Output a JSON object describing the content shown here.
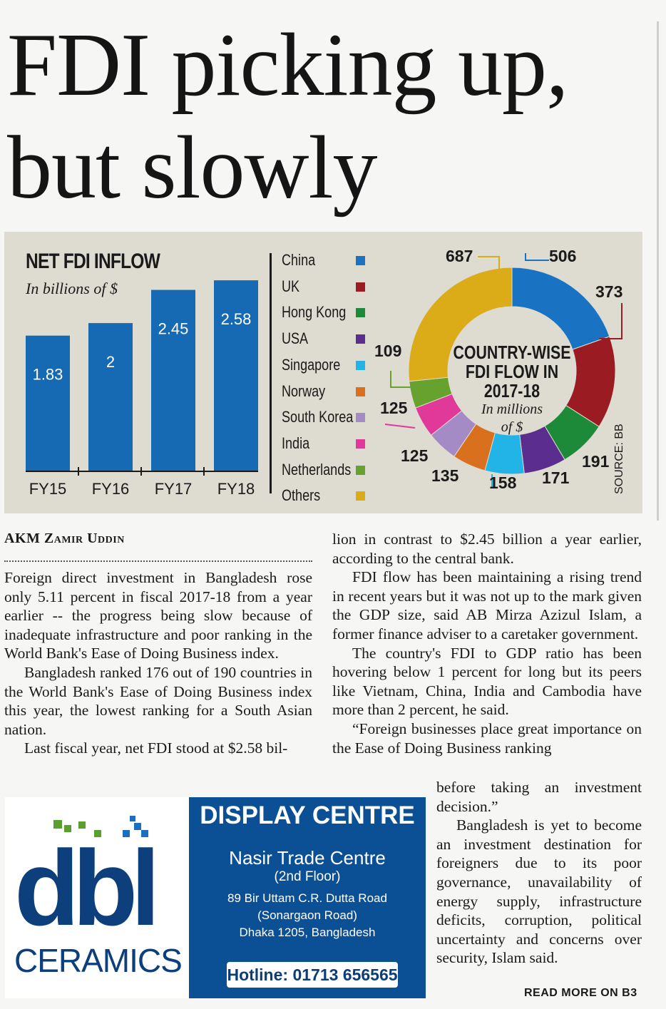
{
  "headline": {
    "line1": "FDI picking up,",
    "line2": "but slowly"
  },
  "net_fdi": {
    "title": "NET FDI INFLOW",
    "subtitle": "In billions of $"
  },
  "country_chart": {
    "center_title_1": "COUNTRY-WISE",
    "center_title_2": "FDI FLOW IN",
    "center_title_3": "2017-18",
    "center_sub_1": "In millions",
    "center_sub_2": "of $",
    "source": "SOURCE: BB"
  },
  "chart_data": [
    {
      "type": "bar",
      "title": "NET FDI INFLOW",
      "subtitle": "In billions of $",
      "categories": [
        "FY15",
        "FY16",
        "FY17",
        "FY18"
      ],
      "values": [
        1.83,
        2,
        2.45,
        2.58
      ],
      "labels": [
        "1.83",
        "2",
        "2.45",
        "2.58"
      ],
      "ylim": [
        0,
        2.9
      ],
      "color": "#1669b3"
    },
    {
      "type": "pie",
      "title": "COUNTRY-WISE FDI FLOW IN 2017-18",
      "subtitle": "In millions of $",
      "slices": [
        {
          "name": "China",
          "value": 506,
          "label": "506",
          "color": "#1a73c2"
        },
        {
          "name": "UK",
          "value": 373,
          "label": "373",
          "color": "#9b1b23"
        },
        {
          "name": "Hong Kong",
          "value": 191,
          "label": "191",
          "color": "#1d8a3a"
        },
        {
          "name": "USA",
          "value": 171,
          "label": "171",
          "color": "#5b2d8e"
        },
        {
          "name": "Singapore",
          "value": 158,
          "label": "158",
          "color": "#22b4e6"
        },
        {
          "name": "Norway",
          "value": 135,
          "label": "135",
          "color": "#d8701e"
        },
        {
          "name": "South Korea",
          "value": 125,
          "label": "125",
          "color": "#a48bc6"
        },
        {
          "name": "India",
          "value": 125,
          "label": "125",
          "color": "#e0399a"
        },
        {
          "name": "Netherlands",
          "value": 109,
          "label": "109",
          "color": "#67a12e"
        },
        {
          "name": "Others",
          "value": 687,
          "label": "687",
          "color": "#dcab18"
        }
      ]
    }
  ],
  "article": {
    "byline": "AKM Zamir Uddin",
    "col1": [
      "Foreign direct investment in Bangladesh rose only 5.11 percent in fiscal 2017-18 from a year earlier -- the progress being slow because of inadequate infrastructure and poor ranking in the World Bank's Ease of Doing Business index.",
      "Bangladesh ranked 176 out of 190 countries in the World Bank's Ease of Doing Business index this year, the lowest ranking for a South Asian nation.",
      "Last fiscal year, net FDI stood at $2.58 bil-"
    ],
    "col2": [
      "lion in contrast to $2.45 billion a year earlier, according to the central bank.",
      "FDI flow has been maintaining a rising trend in recent years but it was not up to the mark given the GDP size, said AB Mirza Azizul Islam, a former finance adviser to a caretaker government.",
      "The country's FDI to GDP ratio has been hovering below 1 percent for long but its peers like Vietnam, China, India and Cambodia have more than 2 percent, he said.",
      "“Foreign businesses place great importance on the Ease of Doing Business ranking"
    ],
    "col3": [
      "before taking an investment decision.”",
      "Bangladesh is yet to become an investment destination for foreigners due to its poor governance, unavailability of energy supply, infrastructure deficits, corruption, political uncertainty and concerns over security, Islam said."
    ],
    "read_more": "READ MORE ON B3"
  },
  "ad": {
    "logo_text": "dbl",
    "logo_sub": "CERAMICS",
    "heading": "DISPLAY CENTRE",
    "venue": "Nasir Trade Centre",
    "floor": "(2nd Floor)",
    "address1": "89 Bir Uttam C.R. Dutta Road",
    "address2": "(Sonargaon Road)",
    "address3": "Dhaka 1205, Bangladesh",
    "hotline": "Hotline: 01713 656565"
  }
}
